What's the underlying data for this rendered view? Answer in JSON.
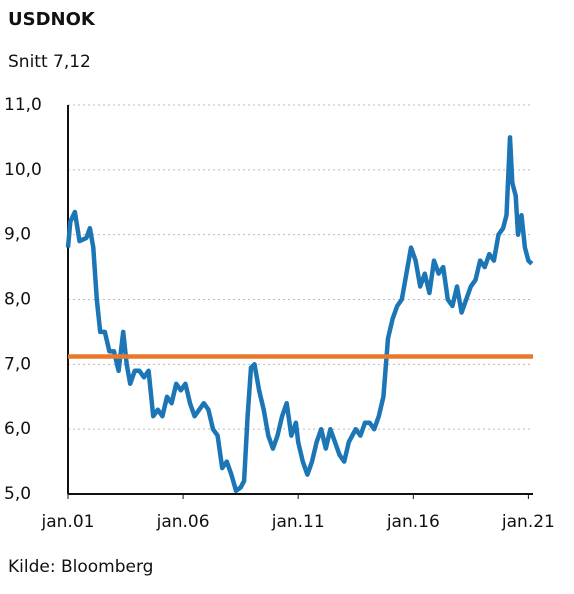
{
  "chart_data": {
    "type": "line",
    "title": "USDNOK",
    "subtitle": "Snitt 7,12",
    "source": "Kilde: Bloomberg",
    "x": [
      2001.0,
      2001.1,
      2001.3,
      2001.5,
      2001.8,
      2001.95,
      2002.1,
      2002.25,
      2002.4,
      2002.6,
      2002.8,
      2003.0,
      2003.2,
      2003.4,
      2003.55,
      2003.7,
      2003.9,
      2004.1,
      2004.3,
      2004.5,
      2004.7,
      2004.9,
      2005.1,
      2005.3,
      2005.5,
      2005.7,
      2005.9,
      2006.1,
      2006.3,
      2006.5,
      2006.7,
      2006.9,
      2007.1,
      2007.3,
      2007.5,
      2007.7,
      2007.9,
      2008.1,
      2008.3,
      2008.5,
      2008.65,
      2008.8,
      2008.95,
      2009.1,
      2009.3,
      2009.5,
      2009.7,
      2009.9,
      2010.1,
      2010.3,
      2010.5,
      2010.7,
      2010.9,
      2011.0,
      2011.2,
      2011.4,
      2011.6,
      2011.8,
      2012.0,
      2012.2,
      2012.4,
      2012.6,
      2012.8,
      2013.0,
      2013.2,
      2013.5,
      2013.7,
      2013.9,
      2014.1,
      2014.3,
      2014.5,
      2014.7,
      2014.9,
      2015.1,
      2015.3,
      2015.5,
      2015.7,
      2015.9,
      2016.1,
      2016.3,
      2016.5,
      2016.7,
      2016.9,
      2017.1,
      2017.3,
      2017.5,
      2017.7,
      2017.9,
      2018.1,
      2018.3,
      2018.5,
      2018.7,
      2018.9,
      2019.1,
      2019.3,
      2019.5,
      2019.7,
      2019.9,
      2020.05,
      2020.2,
      2020.3,
      2020.45,
      2020.55,
      2020.7,
      2020.85,
      2021.0,
      2021.15
    ],
    "series": [
      {
        "color": "#1c76b6",
        "values": [
          8.8,
          9.2,
          9.35,
          8.9,
          8.95,
          9.1,
          8.8,
          8.0,
          7.5,
          7.5,
          7.2,
          7.2,
          6.9,
          7.5,
          7.0,
          6.7,
          6.9,
          6.9,
          6.8,
          6.9,
          6.2,
          6.3,
          6.2,
          6.5,
          6.4,
          6.7,
          6.6,
          6.7,
          6.4,
          6.2,
          6.3,
          6.4,
          6.3,
          6.0,
          5.9,
          5.4,
          5.5,
          5.3,
          5.05,
          5.1,
          5.2,
          6.2,
          6.95,
          7.0,
          6.6,
          6.3,
          5.9,
          5.7,
          5.9,
          6.2,
          6.4,
          5.9,
          6.1,
          5.8,
          5.5,
          5.3,
          5.5,
          5.8,
          6.0,
          5.7,
          6.0,
          5.8,
          5.6,
          5.5,
          5.8,
          6.0,
          5.9,
          6.1,
          6.1,
          6.0,
          6.2,
          6.5,
          7.4,
          7.7,
          7.9,
          8.0,
          8.4,
          8.8,
          8.6,
          8.2,
          8.4,
          8.1,
          8.6,
          8.4,
          8.5,
          8.0,
          7.9,
          8.2,
          7.8,
          8.0,
          8.2,
          8.3,
          8.6,
          8.5,
          8.7,
          8.6,
          9.0,
          9.1,
          9.3,
          10.5,
          9.8,
          9.6,
          9.0,
          9.3,
          8.8,
          8.6,
          8.55
        ]
      }
    ],
    "reference_line": {
      "value": 7.12,
      "color": "#e8782a"
    },
    "xlim": [
      2001,
      2021.2
    ],
    "xticks": [
      {
        "value": 2001,
        "label": "jan.01"
      },
      {
        "value": 2006,
        "label": "jan.06"
      },
      {
        "value": 2011,
        "label": "jan.11"
      },
      {
        "value": 2016,
        "label": "jan.16"
      },
      {
        "value": 2021,
        "label": "jan.21"
      }
    ],
    "ylim": [
      5,
      11
    ],
    "yticks": [
      {
        "value": 5,
        "label": "5,0"
      },
      {
        "value": 6,
        "label": "6,0"
      },
      {
        "value": 7,
        "label": "7,0"
      },
      {
        "value": 8,
        "label": "8,0"
      },
      {
        "value": 9,
        "label": "9,0"
      },
      {
        "value": 10,
        "label": "10,0"
      },
      {
        "value": 11,
        "label": "11,0"
      }
    ],
    "grid": true
  }
}
